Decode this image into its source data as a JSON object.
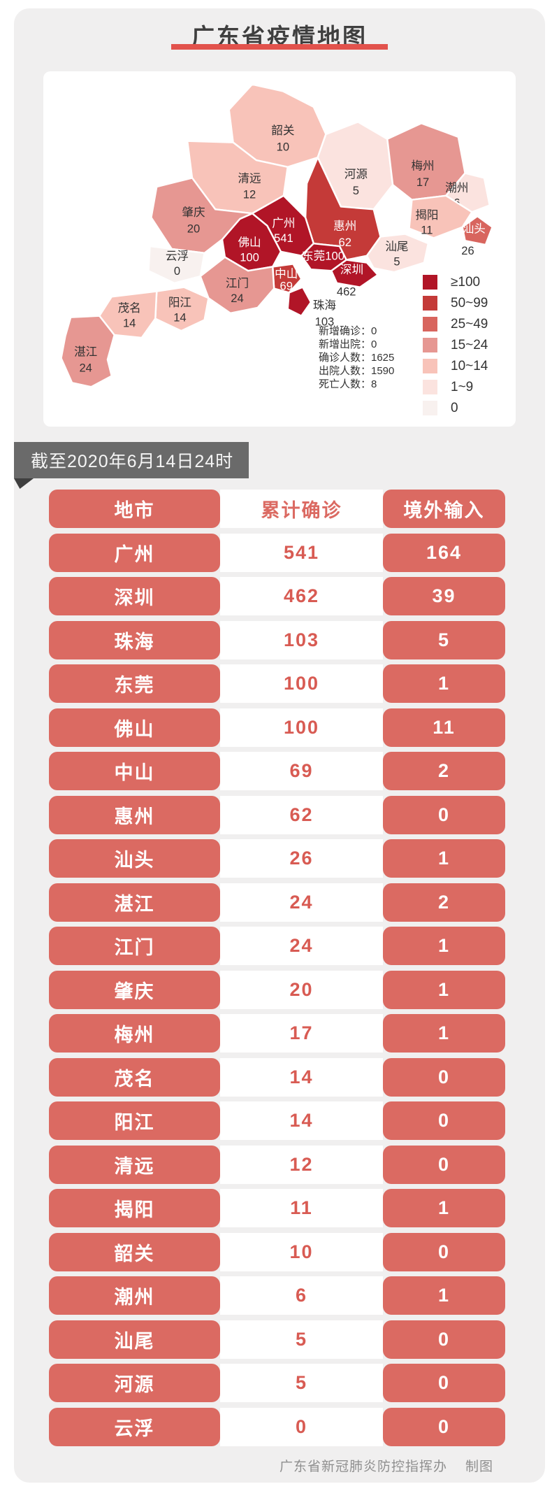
{
  "header": {
    "title": "广东省疫情地图"
  },
  "ribbon": {
    "label": "截至2020年6月14日24时"
  },
  "map": {
    "stats": [
      {
        "label": "新增确诊",
        "value": "0"
      },
      {
        "label": "新增出院",
        "value": "0"
      },
      {
        "label": "确诊人数",
        "value": "1625"
      },
      {
        "label": "出院人数",
        "value": "1590"
      },
      {
        "label": "死亡人数",
        "value": "8"
      }
    ],
    "legend": [
      {
        "label": "≥100",
        "color": "#b11527"
      },
      {
        "label": "50~99",
        "color": "#c43a38"
      },
      {
        "label": "25~49",
        "color": "#d8655e"
      },
      {
        "label": "15~24",
        "color": "#e69792"
      },
      {
        "label": "10~14",
        "color": "#f8c3b9"
      },
      {
        "label": "1~9",
        "color": "#fbe3df"
      },
      {
        "label": "0",
        "color": "#f8f1ef"
      }
    ],
    "cities": [
      {
        "name": "韶关",
        "value": 10
      },
      {
        "name": "清远",
        "value": 12
      },
      {
        "name": "河源",
        "value": 5
      },
      {
        "name": "梅州",
        "value": 17
      },
      {
        "name": "潮州",
        "value": 6
      },
      {
        "name": "揭阳",
        "value": 11
      },
      {
        "name": "汕头",
        "value": 26
      },
      {
        "name": "惠州",
        "value": 62
      },
      {
        "name": "汕尾",
        "value": 5
      },
      {
        "name": "广州",
        "value": 541
      },
      {
        "name": "佛山",
        "value": 100
      },
      {
        "name": "肇庆",
        "value": 20
      },
      {
        "name": "云浮",
        "value": 0
      },
      {
        "name": "东莞",
        "value": 100
      },
      {
        "name": "深圳",
        "value": 462
      },
      {
        "name": "中山",
        "value": 69
      },
      {
        "name": "珠海",
        "value": 103
      },
      {
        "name": "江门",
        "value": 24
      },
      {
        "name": "阳江",
        "value": 14
      },
      {
        "name": "茂名",
        "value": 14
      },
      {
        "name": "湛江",
        "value": 24
      }
    ]
  },
  "table": {
    "headers": [
      "地市",
      "累计确诊",
      "境外输入"
    ],
    "rows": [
      [
        "广州",
        "541",
        "164"
      ],
      [
        "深圳",
        "462",
        "39"
      ],
      [
        "珠海",
        "103",
        "5"
      ],
      [
        "东莞",
        "100",
        "1"
      ],
      [
        "佛山",
        "100",
        "11"
      ],
      [
        "中山",
        "69",
        "2"
      ],
      [
        "惠州",
        "62",
        "0"
      ],
      [
        "汕头",
        "26",
        "1"
      ],
      [
        "湛江",
        "24",
        "2"
      ],
      [
        "江门",
        "24",
        "1"
      ],
      [
        "肇庆",
        "20",
        "1"
      ],
      [
        "梅州",
        "17",
        "1"
      ],
      [
        "茂名",
        "14",
        "0"
      ],
      [
        "阳江",
        "14",
        "0"
      ],
      [
        "清远",
        "12",
        "0"
      ],
      [
        "揭阳",
        "11",
        "1"
      ],
      [
        "韶关",
        "10",
        "0"
      ],
      [
        "潮州",
        "6",
        "1"
      ],
      [
        "汕尾",
        "5",
        "0"
      ],
      [
        "河源",
        "5",
        "0"
      ],
      [
        "云浮",
        "0",
        "0"
      ]
    ]
  },
  "footer": {
    "org": "广东省新冠肺炎防控指挥办",
    "credit": "制图"
  },
  "colors": {
    "panel-bg": "#f0efef",
    "accent": "#db6a62",
    "value-text": "#d85b53",
    "title": "#3f3f3f",
    "underline": "#e2524c",
    "ribbon-bg": "#6a6a6a",
    "ribbon-fold": "#3f3f3f",
    "footer": "#8f8f8f"
  },
  "chart_data": {
    "type": "heatmap",
    "subtype": "choropleth-map",
    "region": "广东省",
    "title": "广东省疫情地图",
    "legend_position": "bottom-right",
    "legend_buckets": [
      "≥100",
      "50~99",
      "25~49",
      "15~24",
      "10~14",
      "1~9",
      "0"
    ],
    "categories": [
      "广州",
      "深圳",
      "珠海",
      "东莞",
      "佛山",
      "中山",
      "惠州",
      "汕头",
      "湛江",
      "江门",
      "肇庆",
      "梅州",
      "茂名",
      "阳江",
      "清远",
      "揭阳",
      "韶关",
      "潮州",
      "汕尾",
      "河源",
      "云浮"
    ],
    "series": [
      {
        "name": "累计确诊",
        "values": [
          541,
          462,
          103,
          100,
          100,
          69,
          62,
          26,
          24,
          24,
          20,
          17,
          14,
          14,
          12,
          11,
          10,
          6,
          5,
          5,
          0
        ]
      },
      {
        "name": "境外输入",
        "values": [
          164,
          39,
          5,
          1,
          11,
          2,
          0,
          1,
          2,
          1,
          1,
          1,
          0,
          0,
          0,
          1,
          0,
          1,
          0,
          0,
          0
        ]
      }
    ],
    "summary": {
      "新增确诊": 0,
      "新增出院": 0,
      "确诊人数": 1625,
      "出院人数": 1590,
      "死亡人数": 8
    }
  }
}
